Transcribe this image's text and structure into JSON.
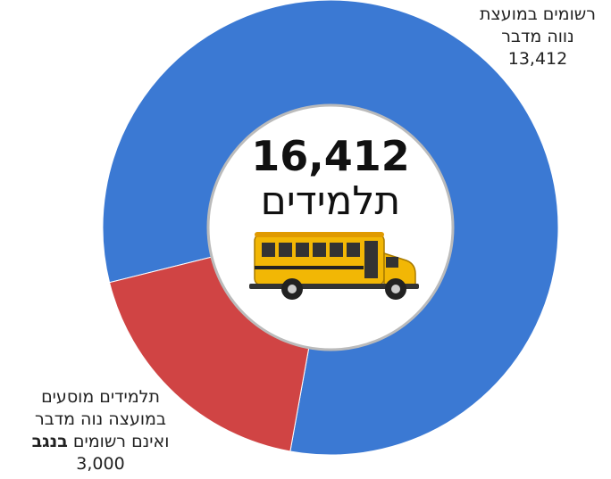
{
  "chart_data": {
    "type": "donut",
    "values": [
      13412,
      3000
    ],
    "value_labels": [
      "13,412",
      "3,000"
    ],
    "colors": [
      "#3b79d3",
      "#d04444"
    ],
    "labels": [
      [
        "רשומים במועצת",
        "נווה מדבר"
      ],
      [
        "תלמידים מוסעים",
        "במועצה נוה מדבר",
        "ואינם רשומים"
      ]
    ],
    "label_bold": "בנגב",
    "total": 16412,
    "total_label": "16,412",
    "center_text": "תלמידים"
  }
}
